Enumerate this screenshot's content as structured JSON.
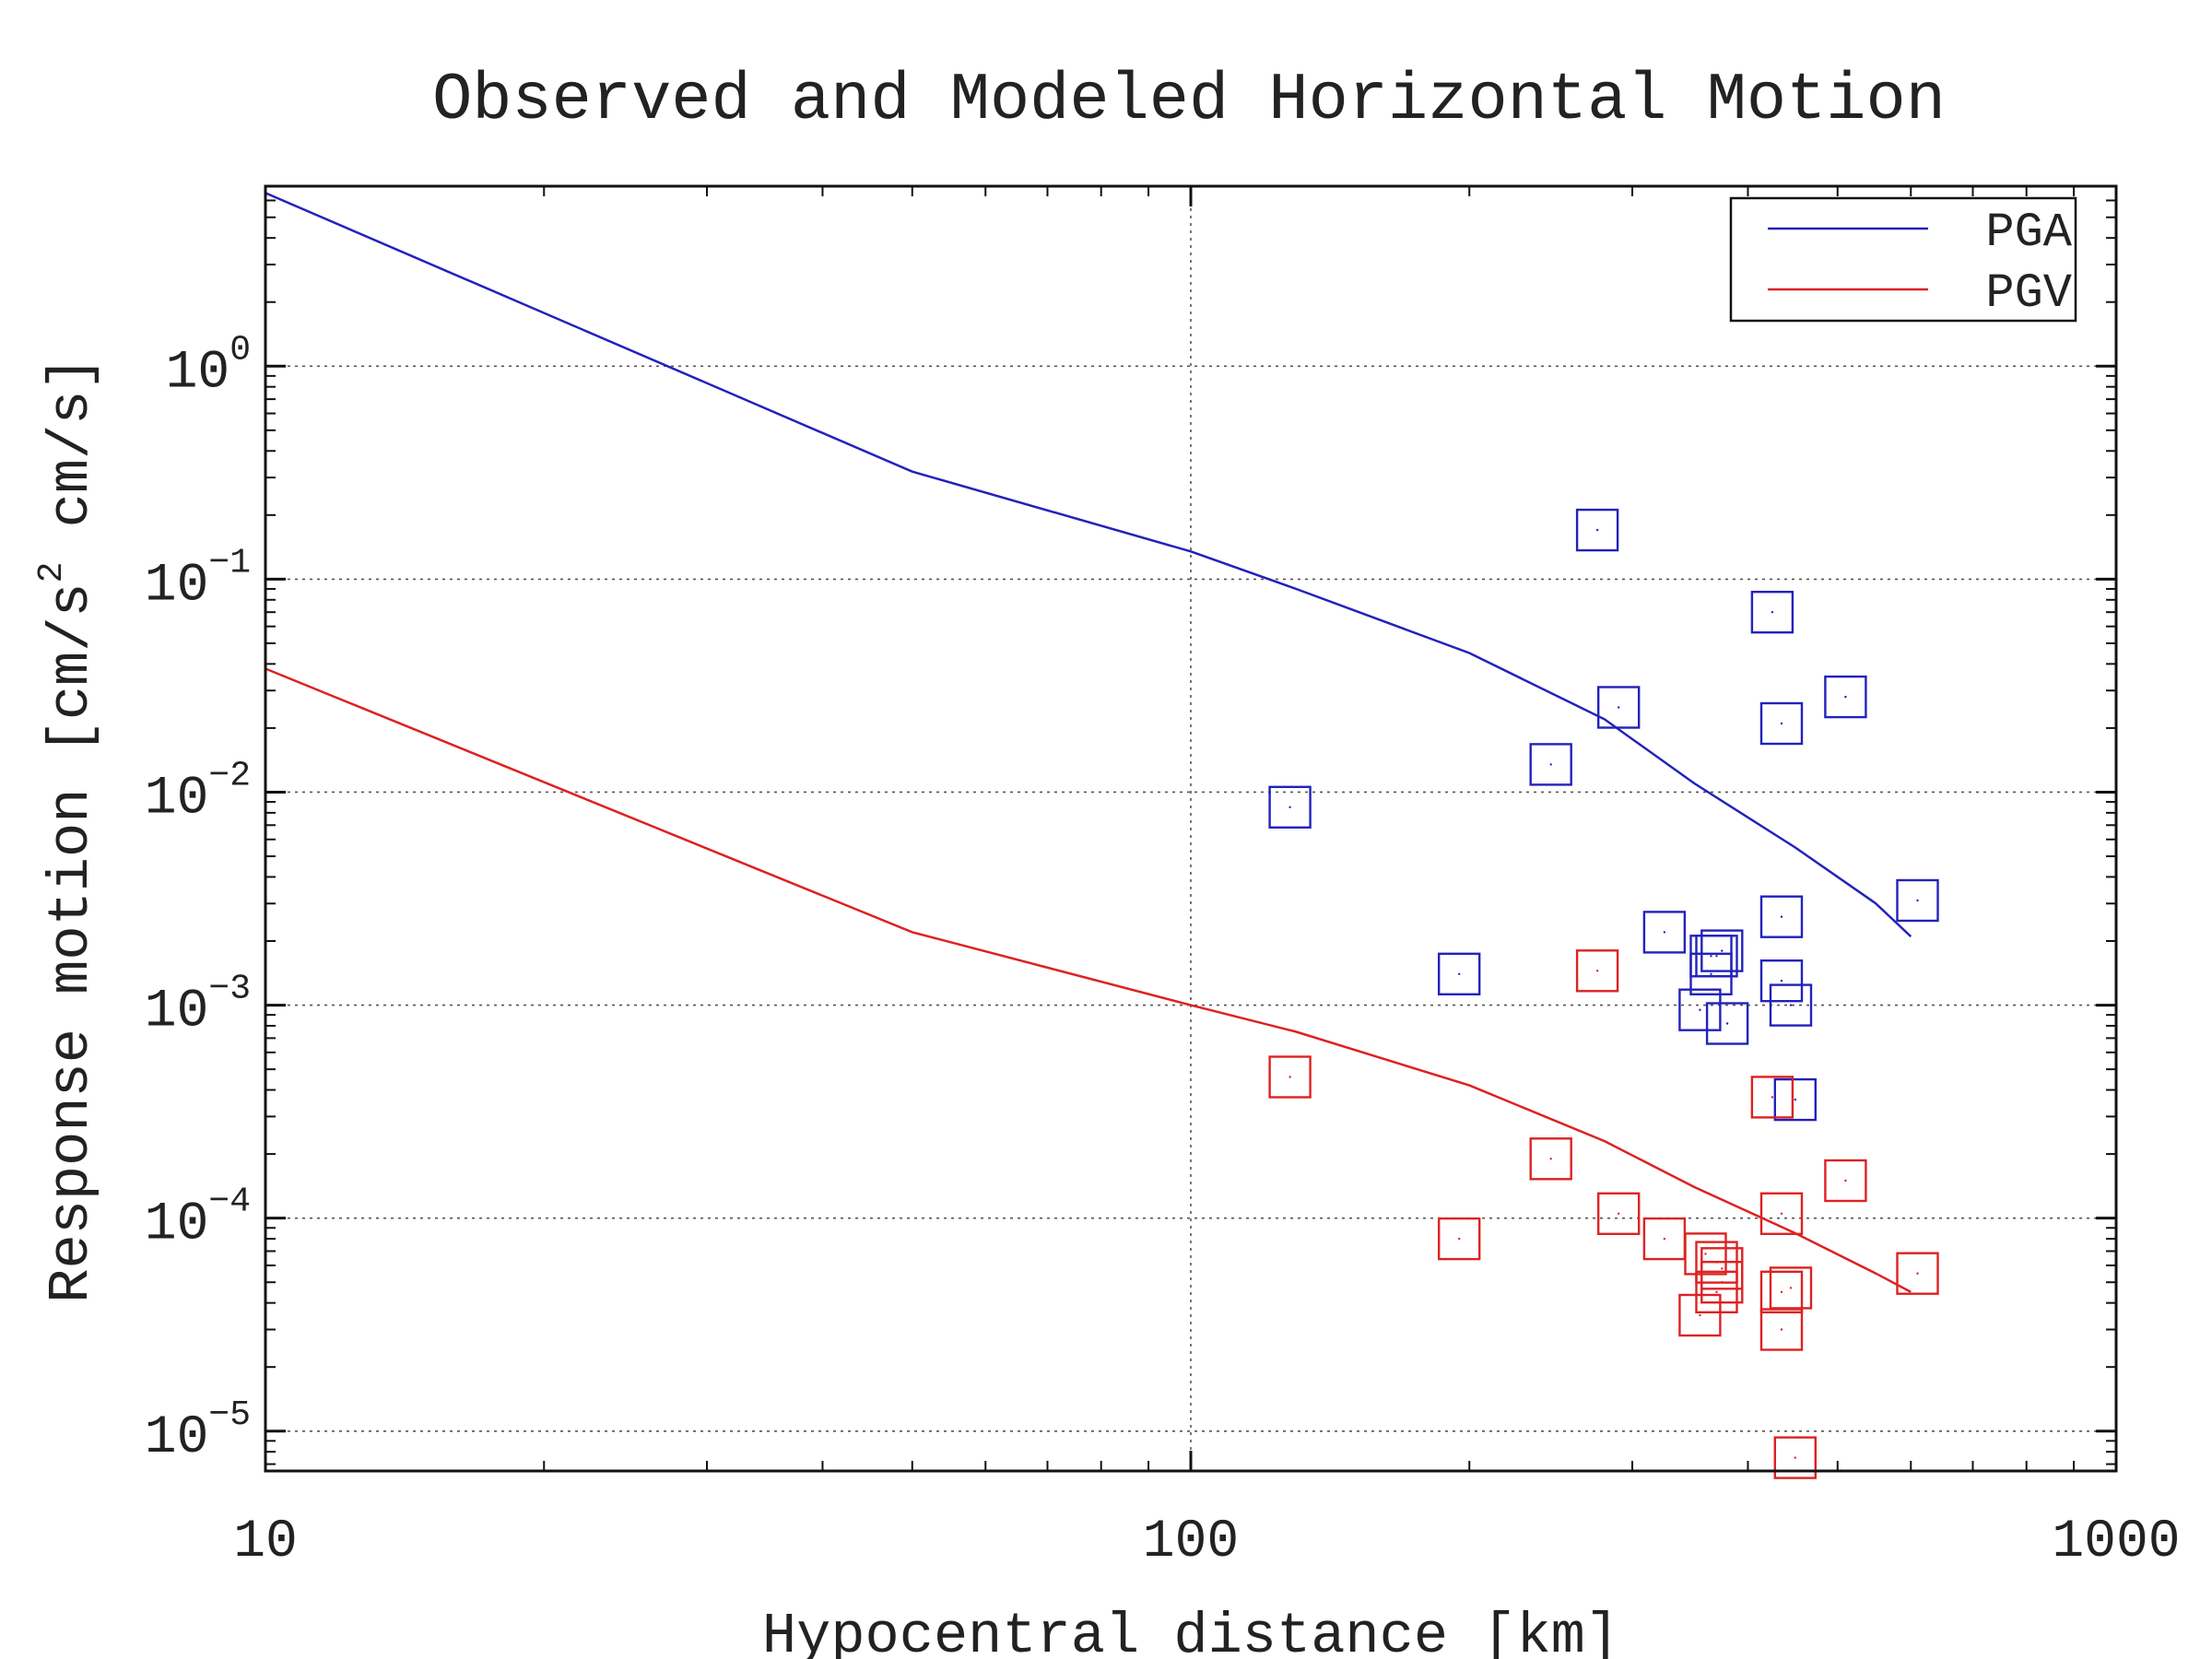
{
  "chart_data": {
    "type": "scatter",
    "title": "Observed and Modeled Horizontal Motion",
    "xlabel": "Hypocentral distance [km]",
    "ylabel": "Response motion  [cm/s",
    "ylabel_exp": "2",
    "ylabel_end": "  cm/s]",
    "x_scale": "log",
    "y_scale": "log",
    "xlim": [
      10,
      1000
    ],
    "ylim": [
      6.5e-06,
      7
    ],
    "x_ticks": [
      {
        "value": 10,
        "label": "10"
      },
      {
        "value": 100,
        "label": "100"
      },
      {
        "value": 1000,
        "label": "1000"
      }
    ],
    "y_ticks": [
      {
        "value": 1,
        "base": "10",
        "exp": "0"
      },
      {
        "value": 0.1,
        "base": "10",
        "exp": "−1"
      },
      {
        "value": 0.01,
        "base": "10",
        "exp": "−2"
      },
      {
        "value": 0.001,
        "base": "10",
        "exp": "−3"
      },
      {
        "value": 0.0001,
        "base": "10",
        "exp": "−4"
      },
      {
        "value": 1e-05,
        "base": "10",
        "exp": "−5"
      }
    ],
    "grid": true,
    "legend_position": "top-right",
    "series": [
      {
        "name": "PGA",
        "color": "#2222bb",
        "line": {
          "x": [
            10,
            50,
            100,
            130,
            200,
            280,
            350,
            450,
            550,
            600
          ],
          "y": [
            6.5,
            0.32,
            0.135,
            0.09,
            0.045,
            0.022,
            0.011,
            0.0055,
            0.003,
            0.0021
          ]
        },
        "points": {
          "x": [
            128,
            195,
            245,
            275,
            290,
            325,
            355,
            365,
            370,
            375,
            380,
            365,
            425,
            435,
            435,
            435,
            445,
            450,
            510,
            610
          ],
          "y": [
            0.0085,
            0.0014,
            0.0135,
            0.17,
            0.025,
            0.0022,
            0.00095,
            0.0014,
            0.0017,
            0.0018,
            0.00082,
            0.0017,
            0.07,
            0.021,
            0.0026,
            0.0013,
            0.001,
            0.00036,
            0.028,
            0.0031
          ]
        }
      },
      {
        "name": "PGV",
        "color": "#dd2222",
        "line": {
          "x": [
            10,
            50,
            100,
            130,
            200,
            280,
            350,
            450,
            550,
            600
          ],
          "y": [
            0.038,
            0.0022,
            0.001,
            0.00075,
            0.00042,
            0.00023,
            0.00014,
            8.5e-05,
            5.5e-05,
            4.5e-05
          ]
        },
        "points": {
          "x": [
            128,
            195,
            245,
            275,
            290,
            325,
            355,
            360,
            370,
            370,
            375,
            375,
            425,
            435,
            435,
            435,
            445,
            450,
            510,
            610
          ],
          "y": [
            0.00046,
            8e-05,
            0.00019,
            0.00145,
            0.000105,
            8e-05,
            3.5e-05,
            6.8e-05,
            6.2e-05,
            4.5e-05,
            5.8e-05,
            5e-05,
            0.00037,
            0.000105,
            4.5e-05,
            3e-05,
            4.7e-05,
            7.5e-06,
            0.00015,
            5.5e-05
          ]
        }
      }
    ]
  }
}
